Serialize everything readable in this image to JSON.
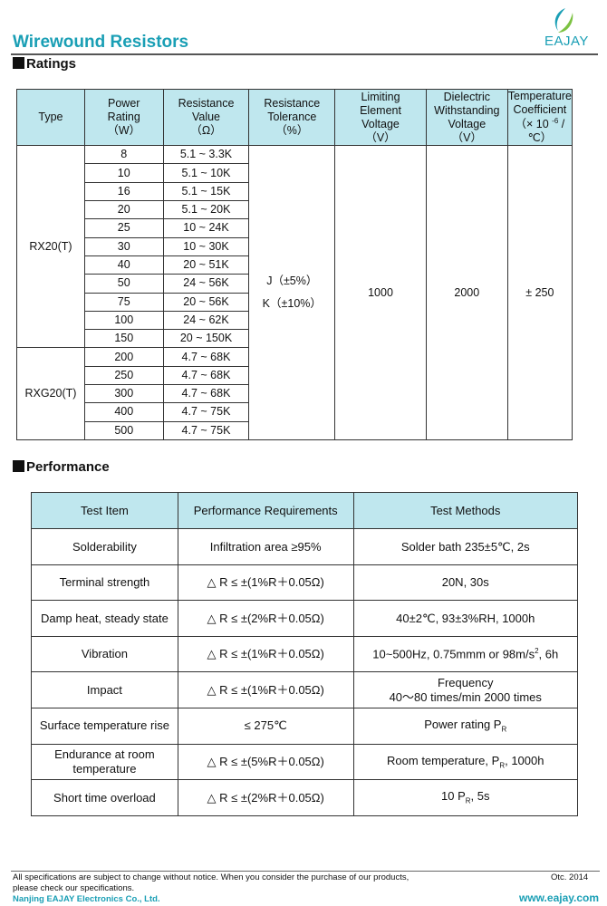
{
  "header": {
    "title": "Wirewound Resistors",
    "logo_text": "EAJAY",
    "colors": {
      "brand": "#1a9fb5",
      "header_fill": "#bfe7ee",
      "logo_green": "#7cc242"
    }
  },
  "ratings": {
    "heading": "Ratings",
    "columns": [
      [
        "Type"
      ],
      [
        "Power",
        "Rating",
        "（W）"
      ],
      [
        "Resistance",
        "Value",
        "（Ω）"
      ],
      [
        "Resistance",
        "Tolerance",
        "（%）"
      ],
      [
        "Limiting",
        "Element",
        "Voltage",
        "（V）"
      ],
      [
        "Dielectric",
        "Withstanding",
        "Voltage",
        "（V）"
      ],
      [
        "Temperature",
        "Coefficient",
        "（× 10 -6 /℃）"
      ]
    ],
    "types": [
      {
        "name": "RX20(T)",
        "rows": [
          [
            "8",
            "5.1 ~ 3.3K"
          ],
          [
            "10",
            "5.1 ~ 10K"
          ],
          [
            "16",
            "5.1 ~ 15K"
          ],
          [
            "20",
            "5.1 ~ 20K"
          ],
          [
            "25",
            "10 ~ 24K"
          ],
          [
            "30",
            "10 ~ 30K"
          ],
          [
            "40",
            "20 ~ 51K"
          ],
          [
            "50",
            "24 ~ 56K"
          ],
          [
            "75",
            "20 ~ 56K"
          ],
          [
            "100",
            "24 ~ 62K"
          ],
          [
            "150",
            "20 ~ 150K"
          ]
        ]
      },
      {
        "name": "RXG20(T)",
        "rows": [
          [
            "200",
            "4.7 ~ 68K"
          ],
          [
            "250",
            "4.7 ~ 68K"
          ],
          [
            "300",
            "4.7 ~ 68K"
          ],
          [
            "400",
            "4.7 ~ 75K"
          ],
          [
            "500",
            "4.7 ~ 75K"
          ]
        ]
      }
    ],
    "tolerance": [
      "J（±5%）",
      "K（±10%）"
    ],
    "limiting_voltage": "1000",
    "dielectric_voltage": "2000",
    "temp_coefficient": "± 250"
  },
  "performance": {
    "heading": "Performance",
    "columns": [
      "Test Item",
      "Performance Requirements",
      "Test Methods"
    ],
    "rows": [
      [
        "Solderability",
        "Infiltration area ≥95%",
        "Solder bath   235±5℃, 2s"
      ],
      [
        "Terminal strength",
        "△ R ≤ ±(1%R＋0.05Ω)",
        "20N, 30s"
      ],
      [
        "Damp heat, steady state",
        "△ R ≤ ±(2%R＋0.05Ω)",
        "40±2℃, 93±3%RH, 1000h"
      ],
      [
        "Vibration",
        "△ R ≤ ±(1%R＋0.05Ω)",
        "10~500Hz, 0.75mmm or 98m/s², 6h"
      ],
      [
        "Impact",
        "△ R ≤ ±(1%R＋0.05Ω)",
        "Frequency\n40～80 times/min   2000 times"
      ],
      [
        "Surface temperature rise",
        "≤ 275℃",
        "Power rating   P_R"
      ],
      [
        "Endurance at room temperature",
        "△ R ≤ ±(5%R＋0.05Ω)",
        "Room temperature, P_R, 1000h"
      ],
      [
        "Short time overload",
        "△ R ≤ ±(2%R＋0.05Ω)",
        "10 P_R, 5s"
      ]
    ]
  },
  "footer": {
    "notice_line1": "All specifications are subject to change without notice. When you consider the purchase of our products,",
    "notice_line2": "please check our specifications.",
    "company": "Nanjing EAJAY Electronics Co., Ltd.",
    "date": "Otc. 2014",
    "website": "www.eajay.com"
  }
}
